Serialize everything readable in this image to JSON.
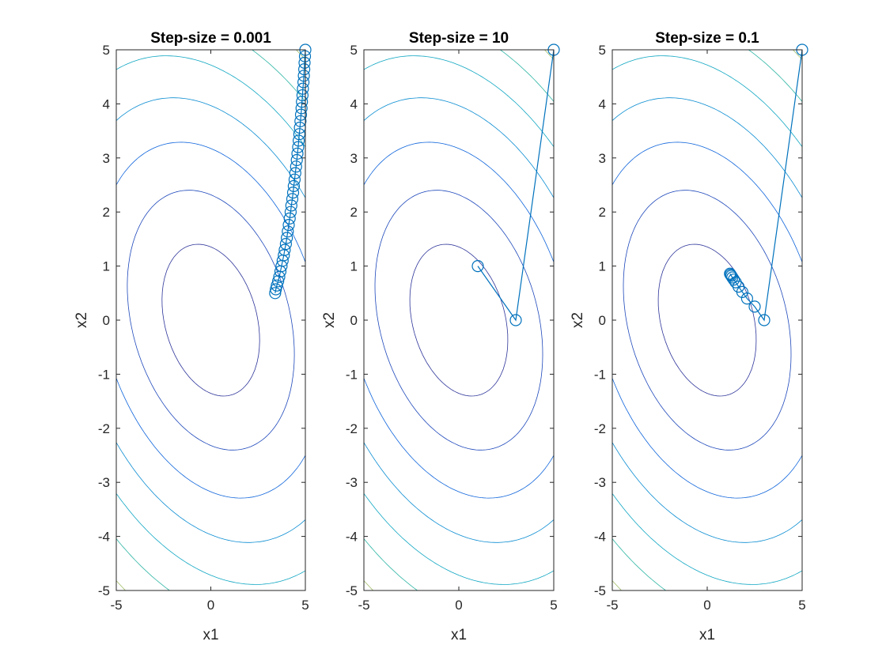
{
  "figure": {
    "background": "#ffffff"
  },
  "chart_data": [
    {
      "type": "scatter",
      "title": "Step-size = 0.001",
      "xlabel": "x1",
      "ylabel": "x2",
      "xlim": [
        -5,
        5
      ],
      "ylim": [
        -5,
        5
      ],
      "xticks": [
        "-5",
        "0",
        "5"
      ],
      "yticks": [
        "-5",
        "-4",
        "-3",
        "-2",
        "-1",
        "0",
        "1",
        "2",
        "3",
        "4",
        "5"
      ],
      "grid": false,
      "background_style": "contour",
      "path_color": "#0072bd",
      "series": [
        {
          "x": [
            5,
            4.98,
            4.96,
            4.94,
            4.92,
            4.9,
            4.87,
            4.85,
            4.82,
            4.8,
            4.77,
            4.74,
            4.71,
            4.68,
            4.65,
            4.62,
            4.58,
            4.55,
            4.51,
            4.47,
            4.43,
            4.39,
            4.35,
            4.31,
            4.26,
            4.22,
            4.17,
            4.12,
            4.07,
            4.02,
            3.97,
            3.91,
            3.86,
            3.8,
            3.74,
            3.68,
            3.62,
            3.56,
            3.49,
            3.44,
            3.4
          ],
          "y": [
            5,
            4.88,
            4.76,
            4.64,
            4.52,
            4.4,
            4.28,
            4.16,
            4.04,
            3.92,
            3.8,
            3.68,
            3.56,
            3.44,
            3.32,
            3.2,
            3.08,
            2.96,
            2.84,
            2.72,
            2.6,
            2.48,
            2.36,
            2.24,
            2.12,
            2.0,
            1.88,
            1.76,
            1.64,
            1.52,
            1.41,
            1.3,
            1.2,
            1.1,
            1.0,
            0.9,
            0.8,
            0.72,
            0.64,
            0.57,
            0.5
          ]
        }
      ]
    },
    {
      "type": "scatter",
      "title": "Step-size = 10",
      "xlabel": "x1",
      "ylabel": "x2",
      "xlim": [
        -5,
        5
      ],
      "ylim": [
        -5,
        5
      ],
      "xticks": [
        "-5",
        "0",
        "5"
      ],
      "yticks": [
        "-5",
        "-4",
        "-3",
        "-2",
        "-1",
        "0",
        "1",
        "2",
        "3",
        "4",
        "5"
      ],
      "grid": false,
      "background_style": "contour",
      "path_color": "#0072bd",
      "series": [
        {
          "x": [
            5,
            3,
            1
          ],
          "y": [
            5,
            0,
            1
          ]
        }
      ]
    },
    {
      "type": "scatter",
      "title": "Step-size = 0.1",
      "xlabel": "x1",
      "ylabel": "x2",
      "xlim": [
        -5,
        5
      ],
      "ylim": [
        -5,
        5
      ],
      "xticks": [
        "-5",
        "0",
        "5"
      ],
      "yticks": [
        "-5",
        "-4",
        "-3",
        "-2",
        "-1",
        "0",
        "1",
        "2",
        "3",
        "4",
        "5"
      ],
      "grid": false,
      "background_style": "contour",
      "path_color": "#0072bd",
      "series": [
        {
          "x": [
            5,
            3.0,
            2.5,
            2.1,
            1.85,
            1.65,
            1.5,
            1.4,
            1.32,
            1.27,
            1.23,
            1.2
          ],
          "y": [
            5,
            0.0,
            0.25,
            0.4,
            0.52,
            0.62,
            0.7,
            0.75,
            0.79,
            0.82,
            0.84,
            0.86
          ]
        }
      ]
    }
  ]
}
